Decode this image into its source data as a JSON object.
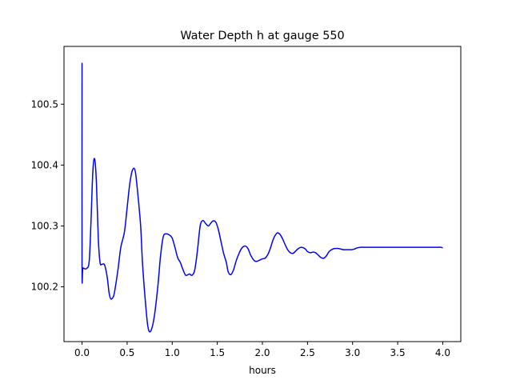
{
  "chart_data": {
    "type": "line",
    "title": "Water Depth h at gauge 550",
    "xlabel": "hours",
    "ylabel": "",
    "xlim": [
      -0.2,
      4.2
    ],
    "ylim": [
      100.11,
      100.595
    ],
    "xticks": [
      0.0,
      0.5,
      1.0,
      1.5,
      2.0,
      2.5,
      3.0,
      3.5,
      4.0
    ],
    "xtick_labels": [
      "0.0",
      "0.5",
      "1.0",
      "1.5",
      "2.0",
      "2.5",
      "3.0",
      "3.5",
      "4.0"
    ],
    "yticks": [
      100.2,
      100.3,
      100.4,
      100.5
    ],
    "ytick_labels": [
      "100.2",
      "100.3",
      "100.4",
      "100.5"
    ],
    "grid": false,
    "legend": "none",
    "series": [
      {
        "color": "#0000ff",
        "x": [
          0.0,
          0.0,
          0.01,
          0.05,
          0.08,
          0.1,
          0.12,
          0.14,
          0.16,
          0.18,
          0.2,
          0.22,
          0.25,
          0.28,
          0.3,
          0.32,
          0.35,
          0.37,
          0.4,
          0.43,
          0.47,
          0.5,
          0.53,
          0.56,
          0.59,
          0.62,
          0.65,
          0.67,
          0.7,
          0.73,
          0.76,
          0.8,
          0.84,
          0.87,
          0.9,
          0.93,
          0.97,
          1.0,
          1.03,
          1.06,
          1.09,
          1.12,
          1.15,
          1.19,
          1.22,
          1.25,
          1.28,
          1.31,
          1.34,
          1.37,
          1.4,
          1.42,
          1.45,
          1.48,
          1.51,
          1.54,
          1.57,
          1.6,
          1.62,
          1.65,
          1.68,
          1.71,
          1.75,
          1.78,
          1.81,
          1.84,
          1.87,
          1.91,
          1.94,
          1.97,
          2.0,
          2.03,
          2.06,
          2.09,
          2.12,
          2.16,
          2.19,
          2.22,
          2.25,
          2.28,
          2.31,
          2.34,
          2.37,
          2.4,
          2.43,
          2.47,
          2.5,
          2.53,
          2.56,
          2.59,
          2.62,
          2.65,
          2.68,
          2.71,
          2.74,
          2.78,
          2.81,
          2.84,
          2.87,
          2.9,
          2.93,
          2.96,
          2.99,
          3.02,
          3.05,
          3.09,
          3.12,
          3.15,
          3.18,
          3.21,
          3.24,
          3.27,
          3.3,
          3.33,
          3.36,
          3.4,
          3.43,
          3.46,
          3.49,
          3.52,
          3.55,
          3.58,
          3.61,
          3.64,
          3.67,
          3.71,
          3.74,
          3.77,
          3.8,
          3.83,
          3.86,
          3.89,
          3.92,
          3.95,
          3.98,
          4.0
        ],
        "y": [
          100.568,
          100.231,
          100.231,
          100.23,
          100.243,
          100.31,
          100.39,
          100.41,
          100.37,
          100.28,
          100.24,
          100.237,
          100.236,
          100.215,
          100.19,
          100.18,
          100.185,
          100.2,
          100.23,
          100.265,
          100.29,
          100.33,
          100.37,
          100.392,
          100.39,
          100.35,
          100.3,
          100.24,
          100.18,
          100.135,
          100.127,
          100.15,
          100.2,
          100.25,
          100.282,
          100.287,
          100.285,
          100.28,
          100.265,
          100.248,
          100.24,
          100.228,
          100.219,
          100.221,
          100.219,
          100.228,
          100.26,
          100.3,
          100.309,
          100.304,
          100.3,
          100.303,
          100.308,
          100.307,
          100.295,
          100.275,
          100.255,
          100.24,
          100.225,
          100.22,
          100.228,
          100.243,
          100.258,
          100.265,
          100.267,
          100.263,
          100.252,
          100.243,
          100.242,
          100.244,
          100.246,
          100.247,
          100.253,
          100.264,
          100.278,
          100.288,
          100.287,
          100.28,
          100.27,
          100.261,
          100.256,
          100.255,
          100.259,
          100.263,
          100.265,
          100.263,
          100.258,
          100.256,
          100.257,
          100.256,
          100.252,
          100.248,
          100.247,
          100.251,
          100.258,
          100.262,
          100.263,
          100.263,
          100.262,
          100.261,
          100.261,
          100.261,
          100.261,
          100.262,
          100.264,
          100.265,
          100.265,
          100.265,
          100.265,
          100.265,
          100.265,
          100.265,
          100.265,
          100.265,
          100.265,
          100.265,
          100.265,
          100.265,
          100.265,
          100.265,
          100.265,
          100.265,
          100.265,
          100.265,
          100.265,
          100.265,
          100.265,
          100.265,
          100.265,
          100.265,
          100.265,
          100.265,
          100.265,
          100.265,
          100.265,
          100.264
        ]
      }
    ]
  }
}
